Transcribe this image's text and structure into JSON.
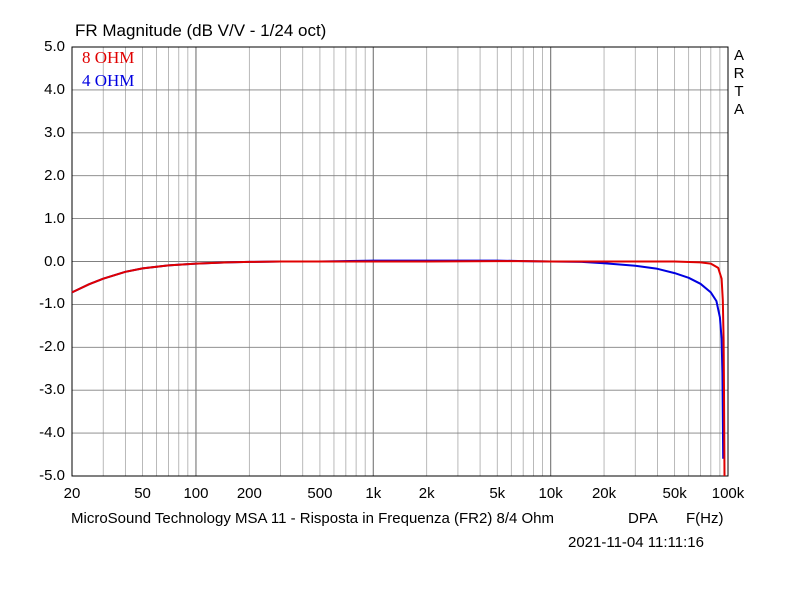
{
  "chart_data": {
    "type": "line",
    "title": "FR Magnitude (dB V/V - 1/24 oct)",
    "watermark": "ARTA",
    "xlabel": "F(Hz)",
    "ylabel": "",
    "x_scale": "log",
    "xlim": [
      20,
      100000
    ],
    "ylim": [
      -5.0,
      5.0
    ],
    "grid": true,
    "legend_position": "top-left",
    "x_tick_labels": [
      {
        "value": 20,
        "label": "20"
      },
      {
        "value": 50,
        "label": "50"
      },
      {
        "value": 100,
        "label": "100"
      },
      {
        "value": 200,
        "label": "200"
      },
      {
        "value": 500,
        "label": "500"
      },
      {
        "value": 1000,
        "label": "1k"
      },
      {
        "value": 2000,
        "label": "2k"
      },
      {
        "value": 5000,
        "label": "5k"
      },
      {
        "value": 10000,
        "label": "10k"
      },
      {
        "value": 20000,
        "label": "20k"
      },
      {
        "value": 50000,
        "label": "50k"
      },
      {
        "value": 100000,
        "label": "100k"
      }
    ],
    "y_tick_labels": [
      {
        "value": 5,
        "label": "5.0"
      },
      {
        "value": 4,
        "label": "4.0"
      },
      {
        "value": 3,
        "label": "3.0"
      },
      {
        "value": 2,
        "label": "2.0"
      },
      {
        "value": 1,
        "label": "1.0"
      },
      {
        "value": 0,
        "label": "0.0"
      },
      {
        "value": -1,
        "label": "-1.0"
      },
      {
        "value": -2,
        "label": "-2.0"
      },
      {
        "value": -3,
        "label": "-3.0"
      },
      {
        "value": -4,
        "label": "-4.0"
      },
      {
        "value": -5,
        "label": "-5.0"
      }
    ],
    "series": [
      {
        "name": "4 OHM",
        "color": "#0000e0",
        "x": [
          20,
          25,
          30,
          40,
          50,
          70,
          100,
          150,
          200,
          300,
          500,
          1000,
          2000,
          5000,
          7000,
          10000,
          15000,
          20000,
          30000,
          40000,
          50000,
          60000,
          70000,
          80000,
          86000,
          90000,
          92000,
          93000,
          94000
        ],
        "y": [
          -0.72,
          -0.53,
          -0.4,
          -0.24,
          -0.16,
          -0.09,
          -0.05,
          -0.02,
          -0.01,
          0.0,
          0.0,
          0.02,
          0.02,
          0.02,
          0.01,
          0.0,
          -0.01,
          -0.04,
          -0.1,
          -0.17,
          -0.27,
          -0.38,
          -0.52,
          -0.72,
          -0.92,
          -1.3,
          -1.8,
          -2.6,
          -4.6
        ]
      },
      {
        "name": "8 OHM",
        "color": "#e00000",
        "x": [
          20,
          25,
          30,
          40,
          50,
          70,
          100,
          150,
          200,
          300,
          500,
          1000,
          2000,
          5000,
          7000,
          10000,
          20000,
          30000,
          50000,
          70000,
          80000,
          88000,
          92000,
          93500,
          94500,
          95000,
          95500
        ],
        "y": [
          -0.72,
          -0.53,
          -0.4,
          -0.24,
          -0.16,
          -0.09,
          -0.05,
          -0.02,
          -0.01,
          0.0,
          0.0,
          0.0,
          0.0,
          0.01,
          0.01,
          0.0,
          0.0,
          0.0,
          0.0,
          -0.02,
          -0.05,
          -0.15,
          -0.4,
          -0.9,
          -1.8,
          -3.0,
          -5.0
        ]
      }
    ]
  },
  "footer": {
    "description": "MicroSound Technology MSA 11 - Risposta in Frequenza (FR2) 8/4 Ohm",
    "program": "DPA",
    "datetime": "2021-11-04  11:11:16"
  }
}
